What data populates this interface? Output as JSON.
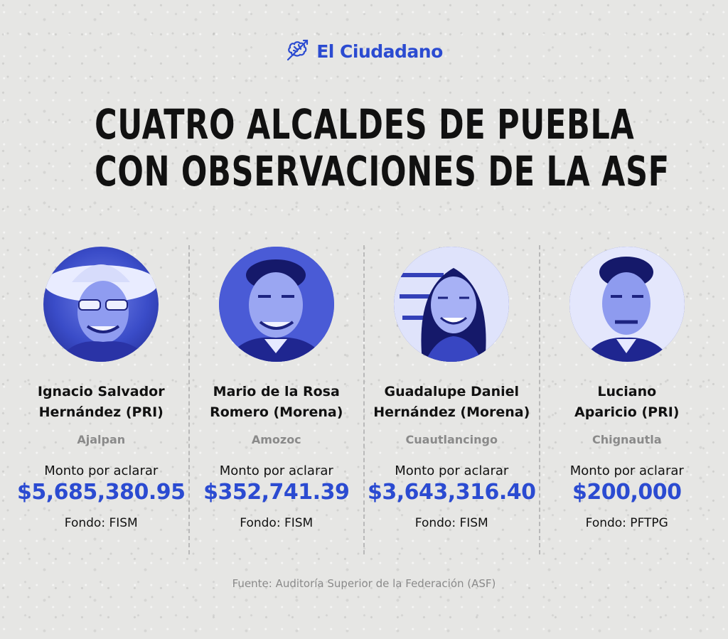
{
  "brand": {
    "name": "El Ciudadano",
    "color": "#2b4bd1",
    "icon": "brain-arrow-icon"
  },
  "headline": {
    "line1": "CUATRO ALCALDES DE PUEBLA",
    "line2": "CON OBSERVACIONES DE LA ASF"
  },
  "mayors": [
    {
      "name_line1": "Ignacio Salvador",
      "name_line2": "Hernández (PRI)",
      "municipality": "Ajalpan",
      "amount_label": "Monto por aclarar",
      "amount": "$5,685,380.95",
      "fund": "Fondo: FISM"
    },
    {
      "name_line1": "Mario de la Rosa",
      "name_line2": "Romero (Morena)",
      "municipality": "Amozoc",
      "amount_label": "Monto por aclarar",
      "amount": "$352,741.39",
      "fund": "Fondo: FISM"
    },
    {
      "name_line1": "Guadalupe Daniel",
      "name_line2": "Hernández (Morena)",
      "municipality": "Cuautlancingo",
      "amount_label": "Monto por aclarar",
      "amount": "$3,643,316.40",
      "fund": "Fondo: FISM"
    },
    {
      "name_line1": "Luciano",
      "name_line2": "Aparicio (PRI)",
      "municipality": "Chignautla",
      "amount_label": "Monto por aclarar",
      "amount": "$200,000",
      "fund": "Fondo: PFTPG"
    }
  ],
  "source": "Fuente: Auditoría Superior de la Federación (ASF)"
}
